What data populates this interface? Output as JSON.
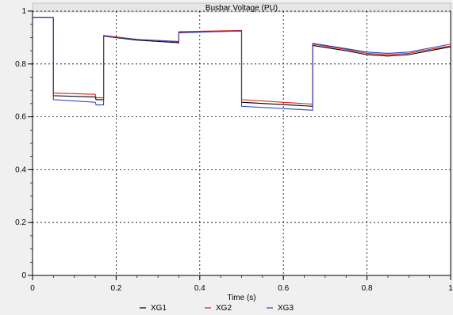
{
  "chart_data": {
    "type": "line",
    "title": "Busbar Voltage (PU)",
    "xlabel": "Time (s)",
    "ylabel": "",
    "xlim": [
      0,
      1
    ],
    "ylim": [
      0,
      1
    ],
    "x_ticks": [
      0,
      0.2,
      0.4,
      0.6,
      0.8,
      1
    ],
    "y_ticks": [
      0,
      0.2,
      0.4,
      0.6,
      0.8,
      1
    ],
    "x_tick_labels": [
      "0",
      "0.2",
      "0.4",
      "0.6",
      "0.8",
      "1"
    ],
    "y_tick_labels": [
      "0",
      "0.2",
      "0.4",
      "0.6",
      "0.8",
      "1"
    ],
    "grid": true,
    "legend_position": "bottom",
    "series": [
      {
        "name": "XG1",
        "color": "#000000",
        "points": [
          [
            0,
            0.975
          ],
          [
            0.05,
            0.975
          ],
          [
            0.05,
            0.68
          ],
          [
            0.15,
            0.675
          ],
          [
            0.152,
            0.665
          ],
          [
            0.17,
            0.665
          ],
          [
            0.17,
            0.905
          ],
          [
            0.25,
            0.89
          ],
          [
            0.35,
            0.88
          ],
          [
            0.35,
            0.92
          ],
          [
            0.5,
            0.925
          ],
          [
            0.5,
            0.655
          ],
          [
            0.67,
            0.64
          ],
          [
            0.67,
            0.87
          ],
          [
            0.75,
            0.85
          ],
          [
            0.8,
            0.835
          ],
          [
            0.85,
            0.83
          ],
          [
            0.9,
            0.835
          ],
          [
            0.95,
            0.85
          ],
          [
            1.0,
            0.865
          ]
        ]
      },
      {
        "name": "XG2",
        "color": "#e02020",
        "points": [
          [
            0,
            0.975
          ],
          [
            0.05,
            0.975
          ],
          [
            0.05,
            0.69
          ],
          [
            0.15,
            0.685
          ],
          [
            0.152,
            0.672
          ],
          [
            0.17,
            0.672
          ],
          [
            0.17,
            0.908
          ],
          [
            0.25,
            0.893
          ],
          [
            0.35,
            0.883
          ],
          [
            0.35,
            0.922
          ],
          [
            0.5,
            0.927
          ],
          [
            0.5,
            0.665
          ],
          [
            0.67,
            0.648
          ],
          [
            0.67,
            0.875
          ],
          [
            0.75,
            0.855
          ],
          [
            0.8,
            0.84
          ],
          [
            0.85,
            0.835
          ],
          [
            0.9,
            0.84
          ],
          [
            0.95,
            0.855
          ],
          [
            1.0,
            0.868
          ]
        ]
      },
      {
        "name": "XG3",
        "color": "#3040c0",
        "points": [
          [
            0,
            0.975
          ],
          [
            0.05,
            0.975
          ],
          [
            0.05,
            0.665
          ],
          [
            0.15,
            0.655
          ],
          [
            0.152,
            0.645
          ],
          [
            0.17,
            0.645
          ],
          [
            0.17,
            0.905
          ],
          [
            0.25,
            0.893
          ],
          [
            0.35,
            0.885
          ],
          [
            0.35,
            0.918
          ],
          [
            0.5,
            0.925
          ],
          [
            0.5,
            0.64
          ],
          [
            0.67,
            0.625
          ],
          [
            0.67,
            0.878
          ],
          [
            0.75,
            0.858
          ],
          [
            0.8,
            0.845
          ],
          [
            0.85,
            0.84
          ],
          [
            0.9,
            0.845
          ],
          [
            0.95,
            0.86
          ],
          [
            1.0,
            0.875
          ]
        ]
      }
    ]
  }
}
